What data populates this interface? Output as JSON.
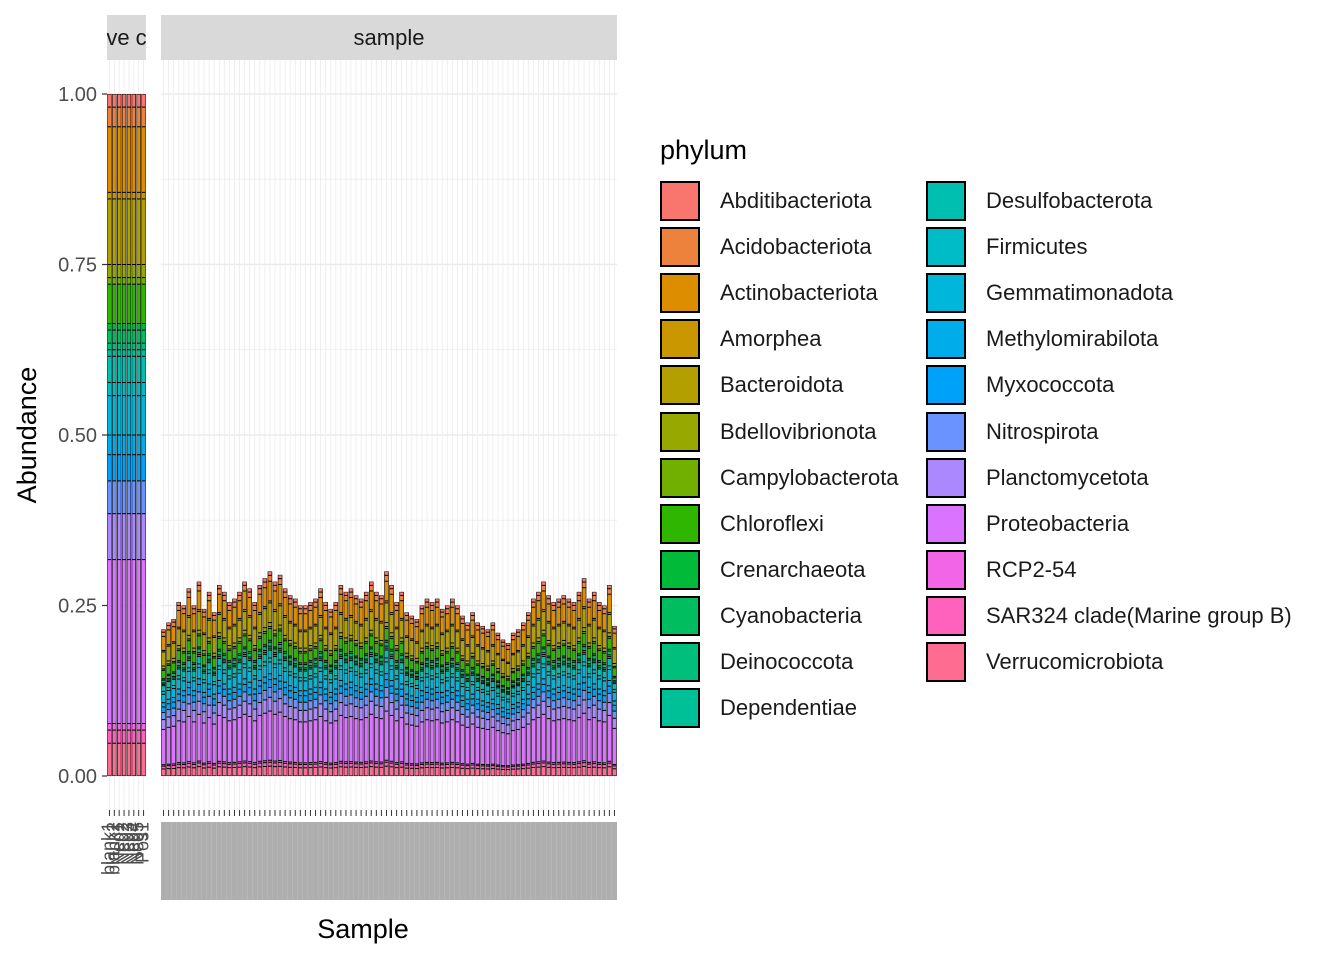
{
  "chart_data": {
    "type": "bar",
    "stacked": true,
    "ylabel": "Abundance",
    "xlabel": "Sample",
    "ylim": [
      0,
      1
    ],
    "yticks": [
      "0.00",
      "0.25",
      "0.50",
      "0.75",
      "1.00"
    ],
    "grid": true,
    "legend_position": "right",
    "legend_title": "phylum",
    "facets": [
      {
        "label": "ve c",
        "categories": [
          "blank1",
          "blank2",
          "Neg1",
          "Neg2",
          "Neg3",
          "Neg4",
          "Neg5",
          "Pos1"
        ],
        "totals": [
          1,
          1,
          1,
          1,
          1,
          1,
          1,
          1
        ]
      },
      {
        "label": "sample",
        "category_count": 90,
        "totals": [
          0.215,
          0.225,
          0.23,
          0.255,
          0.25,
          0.275,
          0.25,
          0.285,
          0.245,
          0.27,
          0.24,
          0.28,
          0.27,
          0.255,
          0.26,
          0.27,
          0.285,
          0.275,
          0.255,
          0.28,
          0.29,
          0.3,
          0.285,
          0.295,
          0.275,
          0.265,
          0.26,
          0.25,
          0.25,
          0.255,
          0.26,
          0.275,
          0.255,
          0.245,
          0.255,
          0.28,
          0.27,
          0.275,
          0.265,
          0.26,
          0.27,
          0.285,
          0.27,
          0.265,
          0.3,
          0.28,
          0.255,
          0.27,
          0.24,
          0.235,
          0.23,
          0.25,
          0.26,
          0.255,
          0.26,
          0.245,
          0.25,
          0.26,
          0.25,
          0.235,
          0.225,
          0.24,
          0.225,
          0.22,
          0.215,
          0.225,
          0.21,
          0.2,
          0.195,
          0.21,
          0.215,
          0.225,
          0.24,
          0.26,
          0.27,
          0.285,
          0.265,
          0.255,
          0.26,
          0.265,
          0.26,
          0.255,
          0.27,
          0.29,
          0.26,
          0.27,
          0.255,
          0.25,
          0.28,
          0.22
        ]
      }
    ],
    "series": [
      {
        "name": "Abditibacteriota",
        "color": "#F8766D"
      },
      {
        "name": "Acidobacteriota",
        "color": "#EC823C"
      },
      {
        "name": "Actinobacteriota",
        "color": "#DD8D00"
      },
      {
        "name": "Amorphea",
        "color": "#CA9700"
      },
      {
        "name": "Bacteroidota",
        "color": "#B3A000"
      },
      {
        "name": "Bdellovibrionota",
        "color": "#97A900"
      },
      {
        "name": "Campylobacterota",
        "color": "#71B000"
      },
      {
        "name": "Chloroflexi",
        "color": "#2FB600"
      },
      {
        "name": "Crenarchaeota",
        "color": "#00BA38"
      },
      {
        "name": "Cyanobacteria",
        "color": "#00BD5F"
      },
      {
        "name": "Deinococcota",
        "color": "#00BF7D"
      },
      {
        "name": "Dependentiae",
        "color": "#00C097"
      },
      {
        "name": "Desulfobacterota",
        "color": "#00BFB0"
      },
      {
        "name": "Firmicutes",
        "color": "#00BCC6"
      },
      {
        "name": "Gemmatimonadota",
        "color": "#00B6DA"
      },
      {
        "name": "Methylomirabilota",
        "color": "#00ADEB"
      },
      {
        "name": "Myxococcota",
        "color": "#00A1F8"
      },
      {
        "name": "Nitrospirota",
        "color": "#6B93FF"
      },
      {
        "name": "Planctomycetota",
        "color": "#AC88FF"
      },
      {
        "name": "Proteobacteria",
        "color": "#DA73FF"
      },
      {
        "name": "RCP2-54",
        "color": "#F265E7"
      },
      {
        "name": "SAR324 clade(Marine group B)",
        "color": "#FF62BC"
      },
      {
        "name": "Verrucomicrobiota",
        "color": "#FF6C91"
      }
    ]
  }
}
